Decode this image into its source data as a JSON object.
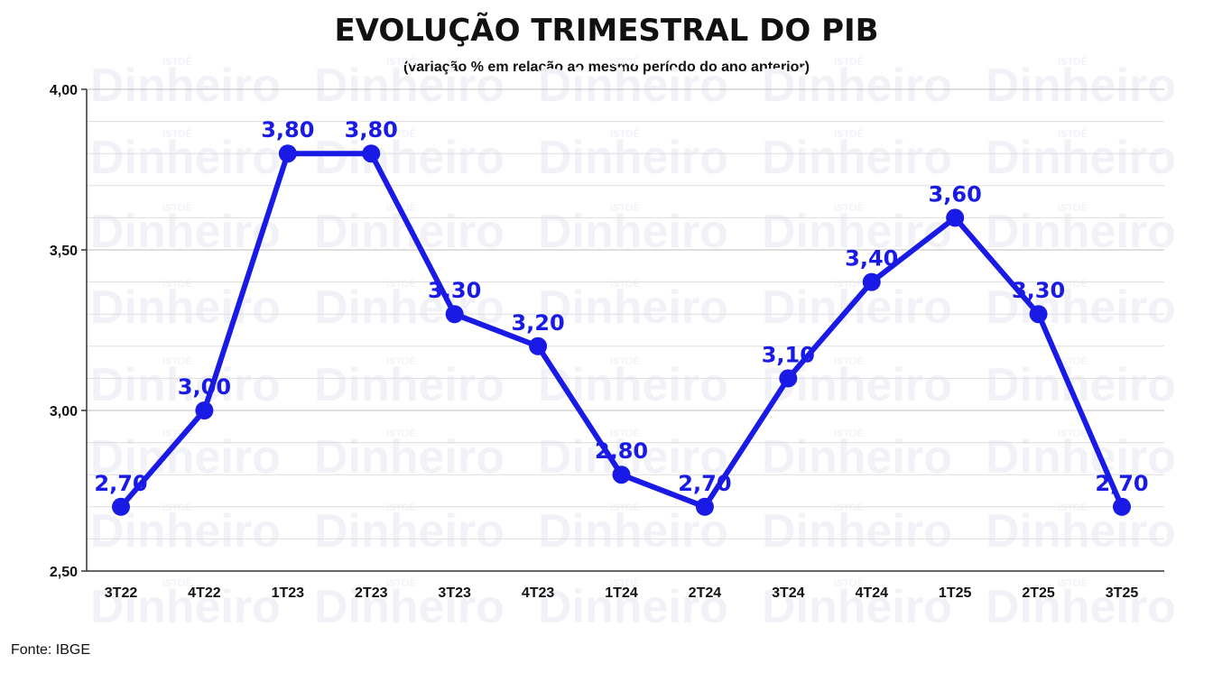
{
  "chart_data": {
    "type": "line",
    "title": "EVOLUÇÃO TRIMESTRAL DO PIB",
    "subtitle": "(variação % em relação ao mesmo período do ano anterior)",
    "categories": [
      "3T22",
      "4T22",
      "1T23",
      "2T23",
      "3T23",
      "4T23",
      "1T24",
      "2T24",
      "3T24",
      "4T24",
      "1T25",
      "2T25",
      "3T25"
    ],
    "series": [
      {
        "values": [
          2.7,
          3.0,
          3.8,
          3.8,
          3.3,
          3.2,
          2.8,
          2.7,
          3.1,
          3.4,
          3.6,
          3.3,
          2.7
        ],
        "labels": [
          "2,70",
          "3,00",
          "3,80",
          "3,80",
          "3,30",
          "3,20",
          "2,80",
          "2,70",
          "3,10",
          "3,40",
          "3,60",
          "3,30",
          "2,70"
        ],
        "color": "#1a1ae6"
      }
    ],
    "yticks": [
      2.5,
      3.0,
      3.5,
      4.0
    ],
    "ytick_labels": [
      "2,50",
      "3,00",
      "3,50",
      "4,00"
    ],
    "ylim": [
      2.5,
      4.0
    ],
    "grid": true,
    "xlabel": "",
    "ylabel": ""
  },
  "source": "Fonte: IBGE",
  "watermark": {
    "brand": "Dinheiro",
    "small": "ISTOÉ"
  }
}
